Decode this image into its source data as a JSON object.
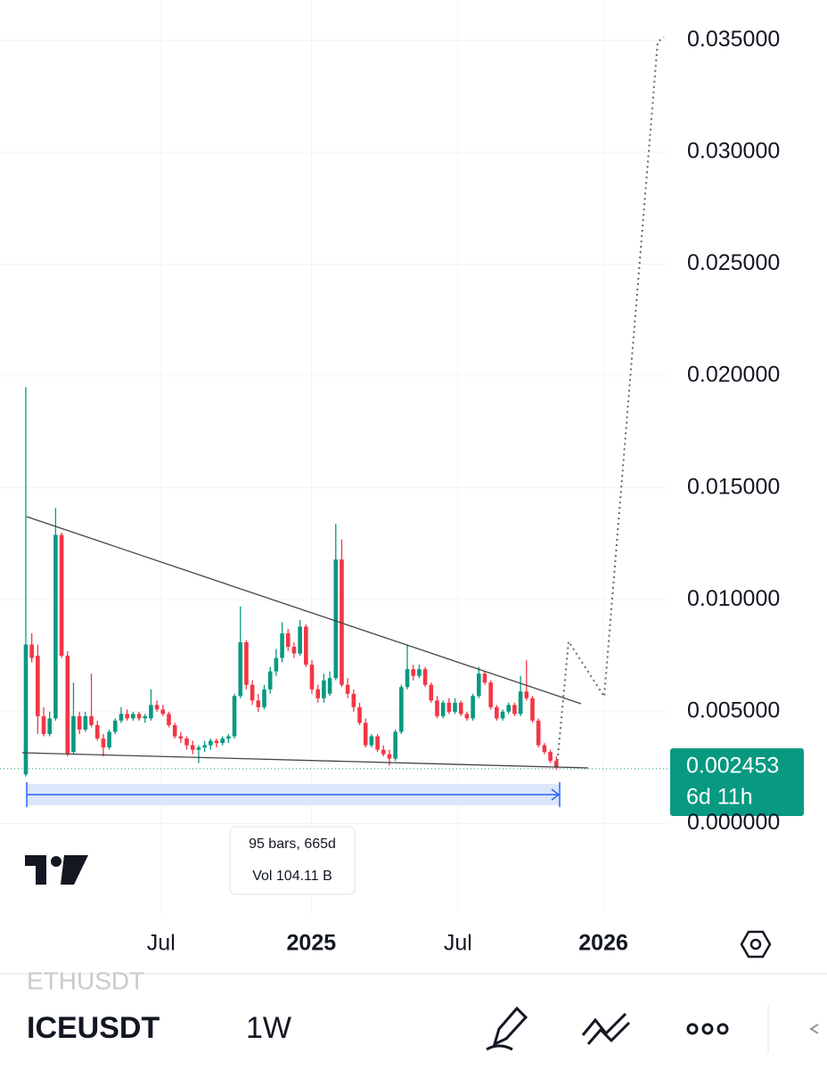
{
  "chart_data": {
    "type": "candlestick",
    "up_color": "#089981",
    "down_color": "#f23645",
    "xlim": [
      -4.33,
      107.8
    ],
    "xticks": [
      {
        "value": 22.7,
        "label": "Jul"
      },
      {
        "value": 47.9,
        "label": "2025"
      },
      {
        "value": 72.5,
        "label": "Jul"
      },
      {
        "value": 96.9,
        "label": "2026"
      }
    ],
    "ylim": [
      -0.004,
      0.0368
    ],
    "yticks": [
      {
        "value": 0,
        "label": "0.000000"
      },
      {
        "value": 0.005,
        "label": "0.005000"
      },
      {
        "value": 0.01,
        "label": "0.010000"
      },
      {
        "value": 0.015,
        "label": "0.015000"
      },
      {
        "value": 0.02,
        "label": "0.020000"
      },
      {
        "value": 0.025,
        "label": "0.025000"
      },
      {
        "value": 0.03,
        "label": "0.030000"
      },
      {
        "value": 0.035,
        "label": "0.035000"
      }
    ],
    "grid": true,
    "last_price": {
      "value": 0.002453,
      "label": "0.002453",
      "countdown": "6d 11h"
    },
    "range_info": {
      "bars": "95 bars, 665d",
      "volume": "Vol 104.11 B"
    },
    "candles": [
      {
        "o": 0.0022,
        "h": 0.0195,
        "l": 0.0021,
        "c": 0.008
      },
      {
        "o": 0.008,
        "h": 0.0085,
        "l": 0.0072,
        "c": 0.0074
      },
      {
        "o": 0.0075,
        "h": 0.008,
        "l": 0.004,
        "c": 0.0048
      },
      {
        "o": 0.0048,
        "h": 0.0052,
        "l": 0.0039,
        "c": 0.004
      },
      {
        "o": 0.004,
        "h": 0.005,
        "l": 0.0039,
        "c": 0.0047
      },
      {
        "o": 0.0047,
        "h": 0.0141,
        "l": 0.0046,
        "c": 0.0129
      },
      {
        "o": 0.0129,
        "h": 0.013,
        "l": 0.0074,
        "c": 0.0075
      },
      {
        "o": 0.0075,
        "h": 0.0077,
        "l": 0.003,
        "c": 0.0031
      },
      {
        "o": 0.0032,
        "h": 0.0063,
        "l": 0.0031,
        "c": 0.0048
      },
      {
        "o": 0.0048,
        "h": 0.005,
        "l": 0.004,
        "c": 0.0042
      },
      {
        "o": 0.0042,
        "h": 0.005,
        "l": 0.0041,
        "c": 0.0048
      },
      {
        "o": 0.0048,
        "h": 0.0067,
        "l": 0.0043,
        "c": 0.0044
      },
      {
        "o": 0.0044,
        "h": 0.0046,
        "l": 0.0037,
        "c": 0.0038
      },
      {
        "o": 0.0038,
        "h": 0.004,
        "l": 0.003,
        "c": 0.0034
      },
      {
        "o": 0.0034,
        "h": 0.0042,
        "l": 0.0033,
        "c": 0.0041
      },
      {
        "o": 0.0041,
        "h": 0.0047,
        "l": 0.004,
        "c": 0.0046
      },
      {
        "o": 0.0046,
        "h": 0.0052,
        "l": 0.0045,
        "c": 0.0049
      },
      {
        "o": 0.0049,
        "h": 0.0051,
        "l": 0.0046,
        "c": 0.0047
      },
      {
        "o": 0.0047,
        "h": 0.005,
        "l": 0.0046,
        "c": 0.0049
      },
      {
        "o": 0.0049,
        "h": 0.005,
        "l": 0.0046,
        "c": 0.0047
      },
      {
        "o": 0.0047,
        "h": 0.0049,
        "l": 0.0045,
        "c": 0.0048
      },
      {
        "o": 0.0047,
        "h": 0.006,
        "l": 0.0046,
        "c": 0.0053
      },
      {
        "o": 0.0053,
        "h": 0.0055,
        "l": 0.005,
        "c": 0.0051
      },
      {
        "o": 0.0051,
        "h": 0.0053,
        "l": 0.0048,
        "c": 0.0049
      },
      {
        "o": 0.0049,
        "h": 0.005,
        "l": 0.0043,
        "c": 0.0044
      },
      {
        "o": 0.0044,
        "h": 0.0045,
        "l": 0.0038,
        "c": 0.0039
      },
      {
        "o": 0.0039,
        "h": 0.0041,
        "l": 0.0036,
        "c": 0.0038
      },
      {
        "o": 0.0038,
        "h": 0.0039,
        "l": 0.0033,
        "c": 0.0035
      },
      {
        "o": 0.0035,
        "h": 0.0037,
        "l": 0.0031,
        "c": 0.0033
      },
      {
        "o": 0.0033,
        "h": 0.0035,
        "l": 0.0027,
        "c": 0.0034
      },
      {
        "o": 0.0034,
        "h": 0.0037,
        "l": 0.0032,
        "c": 0.0035
      },
      {
        "o": 0.0035,
        "h": 0.0038,
        "l": 0.0033,
        "c": 0.0037
      },
      {
        "o": 0.0037,
        "h": 0.0038,
        "l": 0.0034,
        "c": 0.0036
      },
      {
        "o": 0.0036,
        "h": 0.0039,
        "l": 0.0035,
        "c": 0.0038
      },
      {
        "o": 0.0038,
        "h": 0.004,
        "l": 0.0036,
        "c": 0.0039
      },
      {
        "o": 0.0039,
        "h": 0.0058,
        "l": 0.0038,
        "c": 0.0057
      },
      {
        "o": 0.0057,
        "h": 0.0097,
        "l": 0.0056,
        "c": 0.0081
      },
      {
        "o": 0.0081,
        "h": 0.0082,
        "l": 0.006,
        "c": 0.0062
      },
      {
        "o": 0.0062,
        "h": 0.0064,
        "l": 0.0053,
        "c": 0.0055
      },
      {
        "o": 0.0055,
        "h": 0.0058,
        "l": 0.005,
        "c": 0.0052
      },
      {
        "o": 0.0052,
        "h": 0.0062,
        "l": 0.0051,
        "c": 0.006
      },
      {
        "o": 0.006,
        "h": 0.007,
        "l": 0.0058,
        "c": 0.0068
      },
      {
        "o": 0.0068,
        "h": 0.0078,
        "l": 0.0066,
        "c": 0.0074
      },
      {
        "o": 0.0074,
        "h": 0.009,
        "l": 0.0072,
        "c": 0.0085
      },
      {
        "o": 0.0085,
        "h": 0.0087,
        "l": 0.0077,
        "c": 0.0079
      },
      {
        "o": 0.0079,
        "h": 0.0081,
        "l": 0.0074,
        "c": 0.0076
      },
      {
        "o": 0.0076,
        "h": 0.0091,
        "l": 0.0075,
        "c": 0.0088
      },
      {
        "o": 0.0088,
        "h": 0.0089,
        "l": 0.007,
        "c": 0.0071
      },
      {
        "o": 0.0071,
        "h": 0.0073,
        "l": 0.0058,
        "c": 0.006
      },
      {
        "o": 0.006,
        "h": 0.0062,
        "l": 0.0054,
        "c": 0.0056
      },
      {
        "o": 0.0056,
        "h": 0.0067,
        "l": 0.0054,
        "c": 0.0064
      },
      {
        "o": 0.0058,
        "h": 0.0068,
        "l": 0.0057,
        "c": 0.0065
      },
      {
        "o": 0.0065,
        "h": 0.0134,
        "l": 0.0064,
        "c": 0.0118
      },
      {
        "o": 0.0118,
        "h": 0.0127,
        "l": 0.0061,
        "c": 0.0062
      },
      {
        "o": 0.0062,
        "h": 0.0065,
        "l": 0.0056,
        "c": 0.0058
      },
      {
        "o": 0.0058,
        "h": 0.006,
        "l": 0.005,
        "c": 0.0052
      },
      {
        "o": 0.0052,
        "h": 0.0054,
        "l": 0.0044,
        "c": 0.0045
      },
      {
        "o": 0.0045,
        "h": 0.0047,
        "l": 0.0034,
        "c": 0.0035
      },
      {
        "o": 0.0035,
        "h": 0.004,
        "l": 0.0034,
        "c": 0.0039
      },
      {
        "o": 0.0039,
        "h": 0.004,
        "l": 0.0032,
        "c": 0.0033
      },
      {
        "o": 0.0033,
        "h": 0.0035,
        "l": 0.003,
        "c": 0.0031
      },
      {
        "o": 0.0031,
        "h": 0.0033,
        "l": 0.0026,
        "c": 0.0029
      },
      {
        "o": 0.0029,
        "h": 0.0042,
        "l": 0.0028,
        "c": 0.0041
      },
      {
        "o": 0.0041,
        "h": 0.0062,
        "l": 0.004,
        "c": 0.0061
      },
      {
        "o": 0.0061,
        "h": 0.008,
        "l": 0.006,
        "c": 0.0069
      },
      {
        "o": 0.0069,
        "h": 0.0071,
        "l": 0.0064,
        "c": 0.0066
      },
      {
        "o": 0.0066,
        "h": 0.0071,
        "l": 0.0065,
        "c": 0.0069
      },
      {
        "o": 0.0069,
        "h": 0.007,
        "l": 0.0061,
        "c": 0.0062
      },
      {
        "o": 0.0062,
        "h": 0.0063,
        "l": 0.0054,
        "c": 0.0055
      },
      {
        "o": 0.0055,
        "h": 0.0057,
        "l": 0.0047,
        "c": 0.0048
      },
      {
        "o": 0.0048,
        "h": 0.0055,
        "l": 0.0047,
        "c": 0.0054
      },
      {
        "o": 0.0054,
        "h": 0.0056,
        "l": 0.0049,
        "c": 0.005
      },
      {
        "o": 0.005,
        "h": 0.0056,
        "l": 0.0049,
        "c": 0.0054
      },
      {
        "o": 0.0054,
        "h": 0.0055,
        "l": 0.0048,
        "c": 0.0049
      },
      {
        "o": 0.0049,
        "h": 0.005,
        "l": 0.0046,
        "c": 0.0047
      },
      {
        "o": 0.0047,
        "h": 0.0058,
        "l": 0.0046,
        "c": 0.0057
      },
      {
        "o": 0.0057,
        "h": 0.007,
        "l": 0.0056,
        "c": 0.0067
      },
      {
        "o": 0.0067,
        "h": 0.0068,
        "l": 0.0062,
        "c": 0.0063
      },
      {
        "o": 0.0063,
        "h": 0.0064,
        "l": 0.0051,
        "c": 0.0052
      },
      {
        "o": 0.0052,
        "h": 0.0053,
        "l": 0.0046,
        "c": 0.0047
      },
      {
        "o": 0.0047,
        "h": 0.0051,
        "l": 0.0046,
        "c": 0.005
      },
      {
        "o": 0.005,
        "h": 0.0054,
        "l": 0.0049,
        "c": 0.0053
      },
      {
        "o": 0.0053,
        "h": 0.0054,
        "l": 0.0048,
        "c": 0.0049
      },
      {
        "o": 0.0049,
        "h": 0.0066,
        "l": 0.0048,
        "c": 0.0059
      },
      {
        "o": 0.0059,
        "h": 0.0073,
        "l": 0.0055,
        "c": 0.0056
      },
      {
        "o": 0.0056,
        "h": 0.0057,
        "l": 0.0045,
        "c": 0.0046
      },
      {
        "o": 0.0046,
        "h": 0.0047,
        "l": 0.0034,
        "c": 0.0035
      },
      {
        "o": 0.0035,
        "h": 0.0036,
        "l": 0.0031,
        "c": 0.0032
      },
      {
        "o": 0.0032,
        "h": 0.0033,
        "l": 0.0027,
        "c": 0.0028
      },
      {
        "o": 0.0028,
        "h": 0.003,
        "l": 0.0024,
        "c": 0.0025
      }
    ]
  },
  "toolbar": {
    "prev_symbol": "ETHUSDT",
    "symbol": "ICEUSDT",
    "interval": "1W"
  }
}
